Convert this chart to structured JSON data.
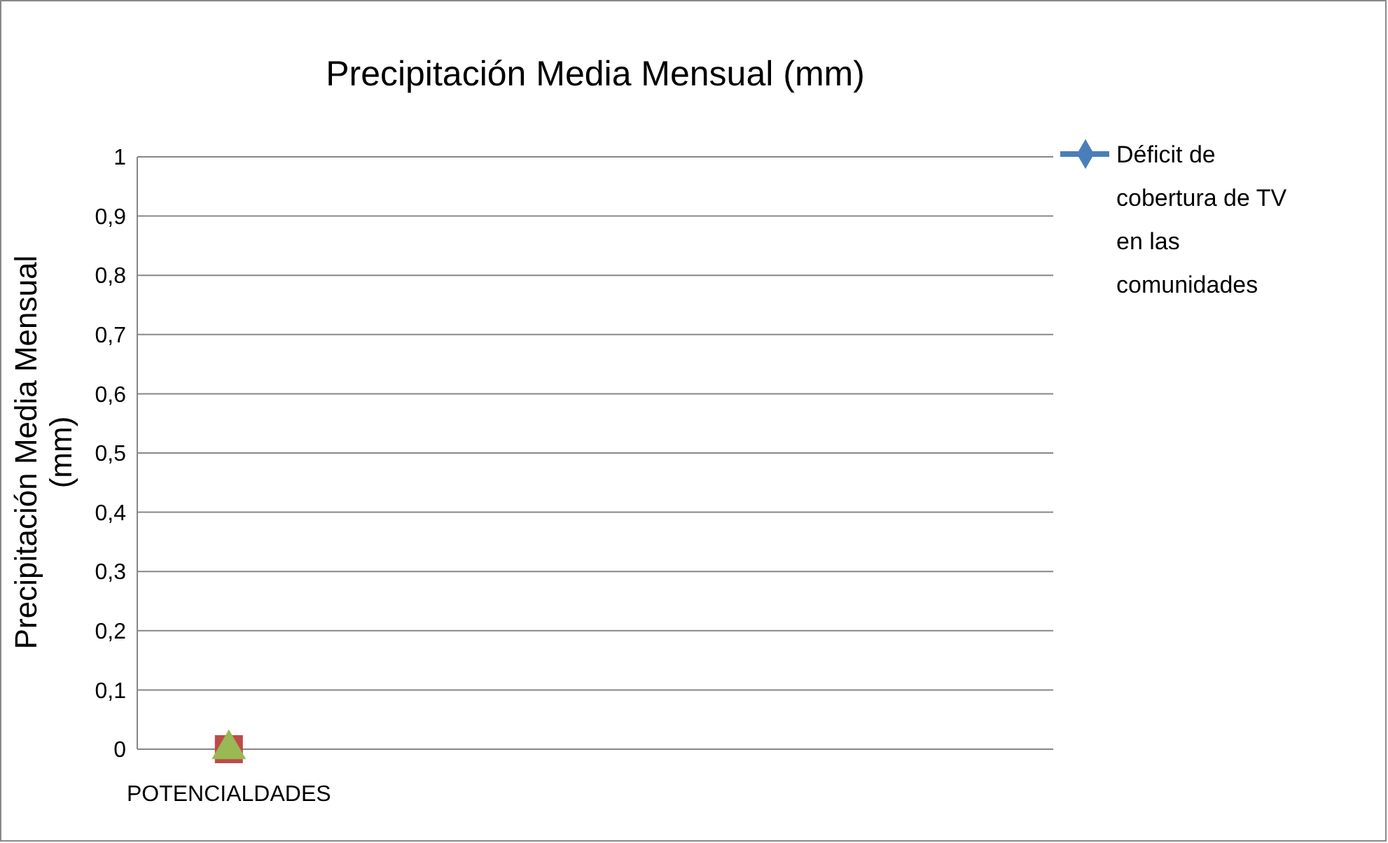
{
  "chart_data": {
    "type": "line",
    "title": "Precipitación Media Mensual (mm)",
    "ylabel": "Precipitación Media Mensual (mm)",
    "categories": [
      "POTENCIALDADES",
      null,
      null,
      null,
      null
    ],
    "series": [
      {
        "name": "Déficit de cobertura de TV en las comunidades",
        "color": "#4a7ebb",
        "marker": "diamond",
        "values": [
          null,
          null,
          null,
          null,
          null
        ]
      },
      {
        "color": "#be4b48",
        "marker": "square",
        "values": [
          0,
          null,
          null,
          null,
          null
        ]
      },
      {
        "color": "#98b954",
        "marker": "triangle",
        "values": [
          0,
          null,
          null,
          null,
          null
        ]
      }
    ],
    "ylim": [
      0,
      1
    ],
    "yticks": [
      0,
      {
        "value": 0.1,
        "label": "0,1"
      },
      {
        "value": 0.2,
        "label": "0,2"
      },
      {
        "value": 0.3,
        "label": "0,3"
      },
      {
        "value": 0.4,
        "label": "0,4"
      },
      {
        "value": 0.5,
        "label": "0,5"
      },
      {
        "value": 0.6,
        "label": "0,6"
      },
      {
        "value": 0.7,
        "label": "0,7"
      },
      {
        "value": 0.8,
        "label": "0,8"
      },
      {
        "value": 0.9,
        "label": "0,9"
      },
      1
    ],
    "grid": "y",
    "legend": "right"
  }
}
